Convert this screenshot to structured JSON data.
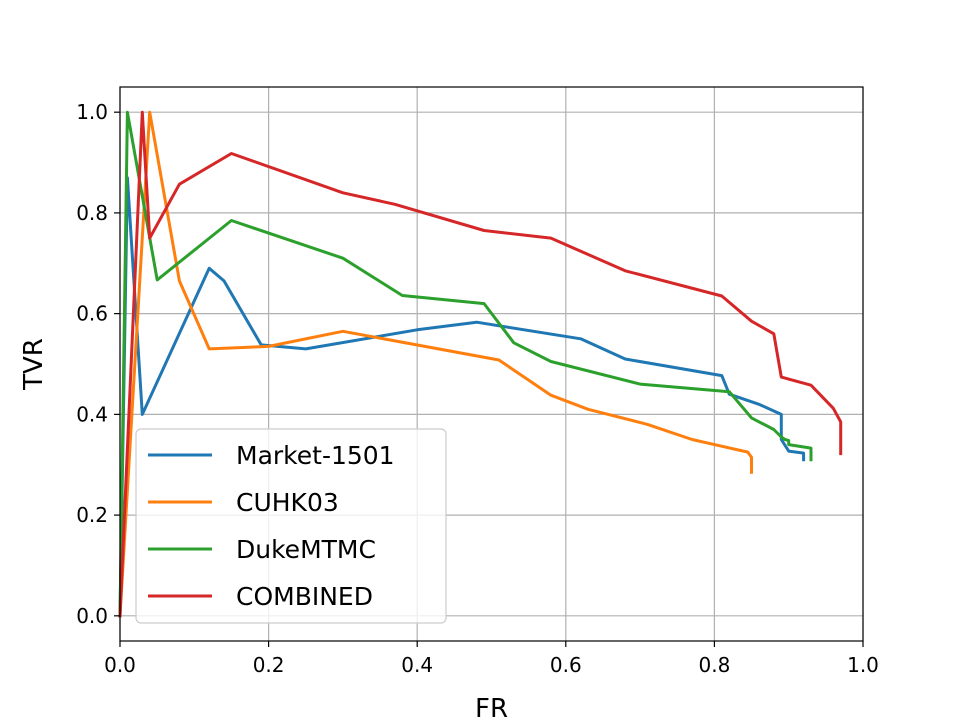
{
  "chart_data": {
    "type": "line",
    "xlabel": "FR",
    "ylabel": "TVR",
    "xlim": [
      0.0,
      1.0
    ],
    "ylim": [
      -0.05,
      1.05
    ],
    "xticks": [
      "0.0",
      "0.2",
      "0.4",
      "0.6",
      "0.8",
      "1.0"
    ],
    "yticks": [
      "0.0",
      "0.2",
      "0.4",
      "0.6",
      "0.8",
      "1.0"
    ],
    "grid": true,
    "legend_position": "lower-left",
    "series": [
      {
        "name": "Market-1501",
        "color": "#1f77b4",
        "x": [
          0.0,
          0.01,
          0.03,
          0.12,
          0.14,
          0.19,
          0.25,
          0.4,
          0.48,
          0.62,
          0.68,
          0.81,
          0.82,
          0.86,
          0.89,
          0.89,
          0.9,
          0.92,
          0.92
        ],
        "y": [
          0.0,
          0.87,
          0.4,
          0.69,
          0.665,
          0.538,
          0.53,
          0.568,
          0.583,
          0.55,
          0.51,
          0.477,
          0.44,
          0.42,
          0.4,
          0.35,
          0.327,
          0.323,
          0.31
        ]
      },
      {
        "name": "CUHK03",
        "color": "#ff7f0e",
        "x": [
          0.0,
          0.04,
          0.08,
          0.12,
          0.2,
          0.3,
          0.51,
          0.58,
          0.63,
          0.71,
          0.77,
          0.8,
          0.845,
          0.85,
          0.85
        ],
        "y": [
          0.0,
          1.0,
          0.665,
          0.53,
          0.535,
          0.565,
          0.508,
          0.438,
          0.41,
          0.38,
          0.35,
          0.34,
          0.325,
          0.315,
          0.285
        ]
      },
      {
        "name": "DukeMTMC",
        "color": "#2ca02c",
        "x": [
          0.0,
          0.01,
          0.05,
          0.15,
          0.3,
          0.38,
          0.49,
          0.53,
          0.58,
          0.7,
          0.82,
          0.85,
          0.88,
          0.89,
          0.895,
          0.9,
          0.9,
          0.93,
          0.93
        ],
        "y": [
          0.0,
          1.0,
          0.667,
          0.785,
          0.71,
          0.636,
          0.62,
          0.542,
          0.505,
          0.46,
          0.445,
          0.393,
          0.37,
          0.355,
          0.35,
          0.348,
          0.34,
          0.333,
          0.31
        ]
      },
      {
        "name": "COMBINED",
        "color": "#d62728",
        "x": [
          0.0,
          0.03,
          0.04,
          0.08,
          0.15,
          0.3,
          0.37,
          0.49,
          0.58,
          0.68,
          0.81,
          0.85,
          0.88,
          0.89,
          0.93,
          0.96,
          0.97,
          0.97
        ],
        "y": [
          0.0,
          1.0,
          0.75,
          0.857,
          0.918,
          0.84,
          0.817,
          0.765,
          0.75,
          0.685,
          0.635,
          0.585,
          0.56,
          0.474,
          0.458,
          0.412,
          0.385,
          0.322
        ]
      }
    ]
  }
}
